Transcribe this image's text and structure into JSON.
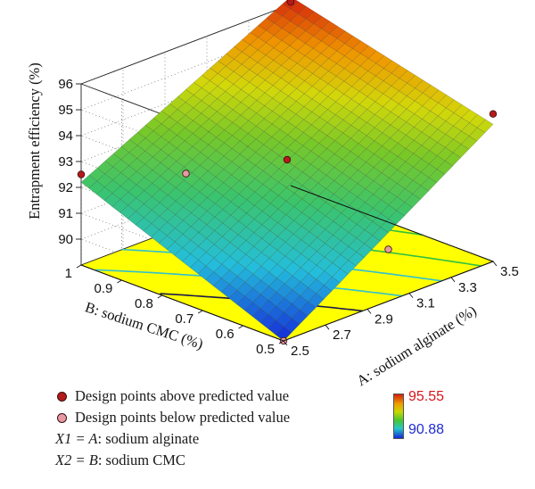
{
  "chart_data": {
    "type": "surface3d",
    "zlabel": "Entrapment efficiency (%)",
    "xlabel": "A: sodium alginate (%)",
    "ylabel": "B: sodium CMC (%)",
    "x_ticks": [
      "2.5",
      "2.7",
      "2.9",
      "3.1",
      "3.3",
      "3.5"
    ],
    "y_ticks": [
      "0.5",
      "0.6",
      "0.7",
      "0.8",
      "0.9",
      "1"
    ],
    "z_ticks": [
      "90",
      "91",
      "92",
      "93",
      "94",
      "95",
      "96"
    ],
    "xlim": [
      2.5,
      3.5
    ],
    "ylim": [
      0.5,
      1.0
    ],
    "zlim": [
      89,
      96
    ],
    "surface_corners": [
      {
        "A": 2.5,
        "B": 0.5,
        "z": 89.0
      },
      {
        "A": 3.5,
        "B": 0.5,
        "z": 94.3
      },
      {
        "A": 2.5,
        "B": 1.0,
        "z": 92.2
      },
      {
        "A": 3.5,
        "B": 1.0,
        "z": 96.3
      }
    ],
    "design_points": [
      {
        "A": 2.5,
        "B": 1.0,
        "z": 92.5,
        "position": "above"
      },
      {
        "A": 3.5,
        "B": 1.0,
        "z": 96.1,
        "position": "above"
      },
      {
        "A": 3.5,
        "B": 0.5,
        "z": 94.7,
        "position": "above"
      },
      {
        "A": 3.0,
        "B": 0.75,
        "z": 93.0,
        "position": "above"
      },
      {
        "A": 2.5,
        "B": 0.5,
        "z": 89.0,
        "position": "below"
      },
      {
        "A": 3.0,
        "B": 1.0,
        "z": 91.0,
        "position": "below"
      },
      {
        "A": 3.0,
        "B": 0.5,
        "z": 91.0,
        "position": "below"
      }
    ],
    "color_scale": {
      "min": "90.88",
      "max": "95.55"
    },
    "colors": {
      "point_above": "#b51a1a",
      "point_below": "#e89aa4",
      "floor": "#ffff00",
      "scale_min_text": "#1f2bd0",
      "scale_max_text": "#d8171c"
    }
  },
  "legend": {
    "above_label": "Design points above predicted value",
    "below_label": "Design points below predicted value",
    "factor1_prefix": "X1 = ",
    "factor1_var": "A",
    "factor1_name": ": sodium alginate",
    "factor2_prefix": "X2 = ",
    "factor2_var": "B",
    "factor2_name": ": sodium CMC"
  }
}
